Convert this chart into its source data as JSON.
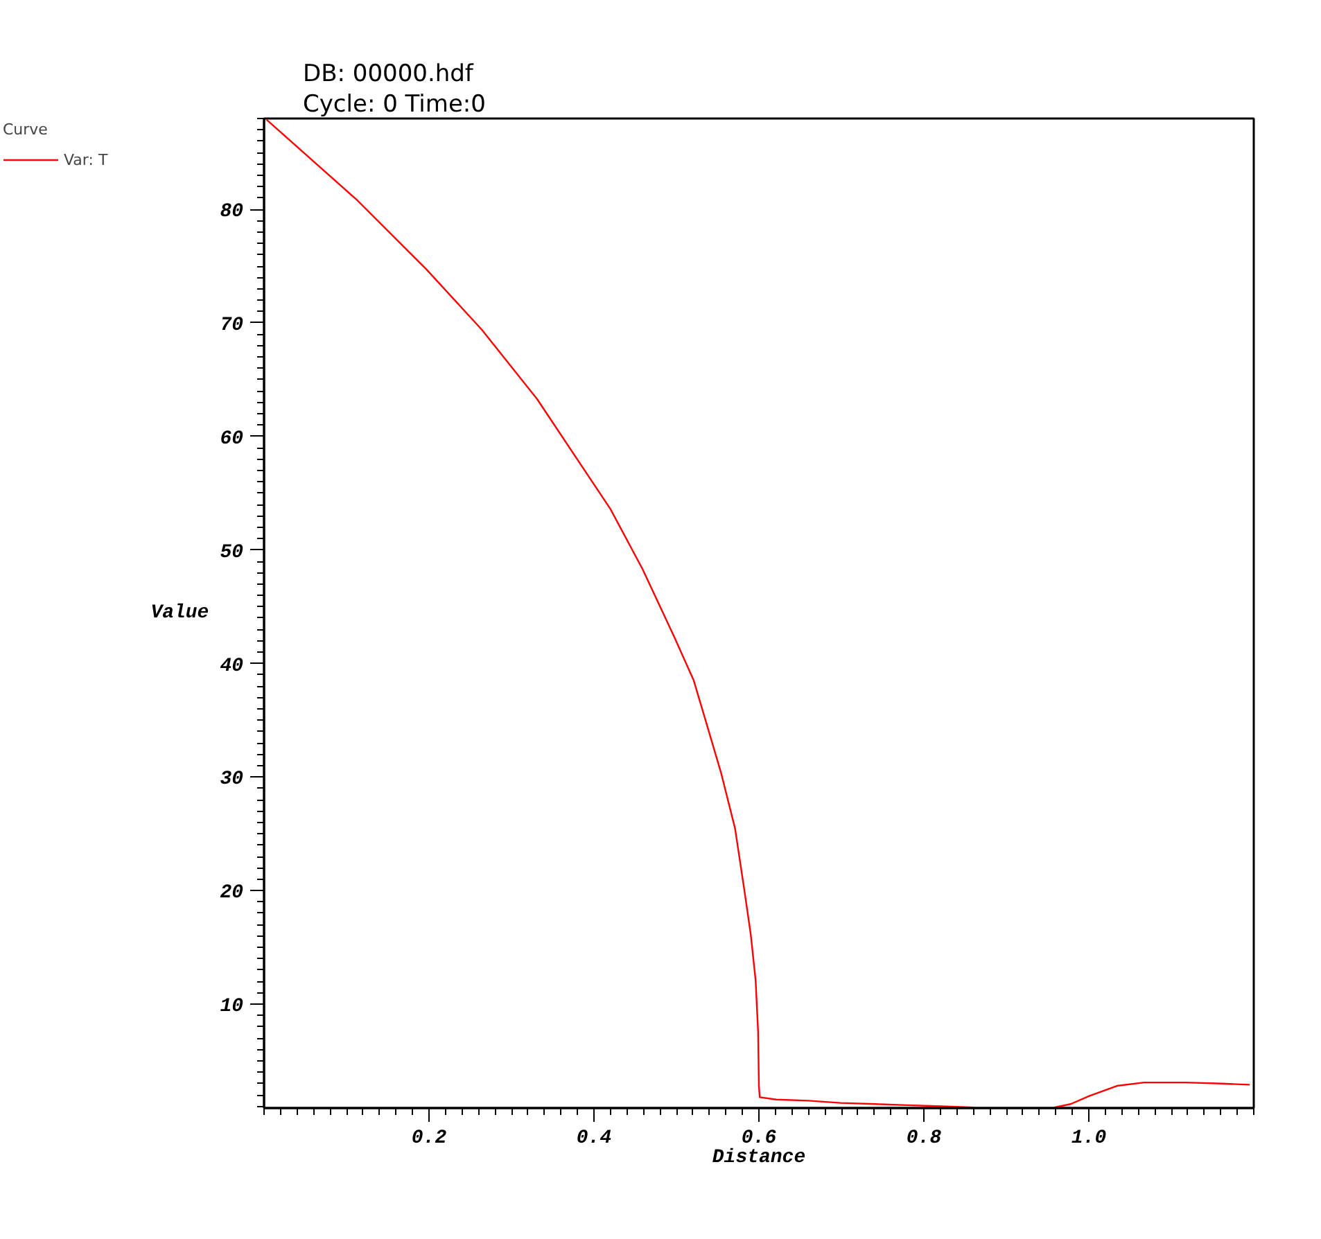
{
  "chart_data": {
    "type": "line",
    "title": "DB: 00000.hdf",
    "subtitle": "Cycle: 0       Time:0",
    "xlabel": "Distance",
    "ylabel": "Value",
    "legend_title": "Curve",
    "legend": "top left",
    "grid": false,
    "marker": "none",
    "line_style": "solid",
    "xlim": [
      0,
      1.2
    ],
    "ylim": [
      0.85,
      88
    ],
    "xticks": [
      0.2,
      0.4,
      0.6,
      0.8,
      {
        "value": 1.0,
        "label": "1.0"
      }
    ],
    "yticks": [
      10,
      20,
      30,
      40,
      50,
      60,
      70,
      80
    ],
    "series": [
      {
        "name": "Var: T",
        "color": "#ff0000",
        "x": [
          0.003,
          0.113,
          0.197,
          0.264,
          0.331,
          0.375,
          0.42,
          0.459,
          0.497,
          0.521,
          0.554,
          0.571,
          0.582,
          0.59,
          0.596,
          0.599,
          0.6,
          0.601,
          0.621,
          0.66,
          0.699,
          0.741,
          0.78,
          0.822,
          0.861,
          0.91,
          0.958,
          0.978,
          1.0,
          1.034,
          1.067,
          1.117,
          1.162,
          1.195
        ],
        "values": [
          87.9,
          80.8,
          74.7,
          69.4,
          63.3,
          58.5,
          53.6,
          48.3,
          42.4,
          38.5,
          30.4,
          25.5,
          20.2,
          16.2,
          12.1,
          7.6,
          2.8,
          1.8,
          1.6,
          1.5,
          1.3,
          1.2,
          1.1,
          1.0,
          0.9,
          null,
          0.9,
          1.2,
          1.9,
          2.8,
          3.1,
          3.1,
          3.0,
          2.9
        ]
      }
    ]
  }
}
